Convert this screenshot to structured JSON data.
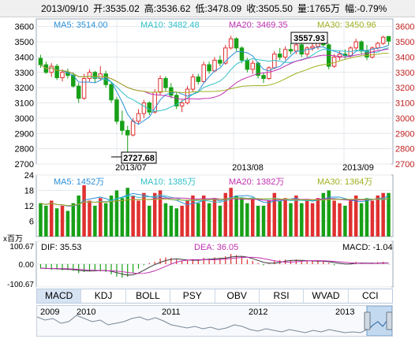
{
  "header": {
    "date": "2013/09/10",
    "open": "开:3535.02",
    "high": "高:3536.62",
    "low": "低:3478.09",
    "close": "收:3505.50",
    "volume": "量:1765万",
    "change": "幅:-0.79%"
  },
  "colors": {
    "up": "#e03030",
    "down": "#18a018",
    "ma5": "#2a8fd8",
    "ma10": "#30c0c8",
    "ma20": "#c030b0",
    "ma30": "#a0b020"
  },
  "price_panel": {
    "legend": {
      "ma5": "MA5: 3514.00",
      "ma10": "MA10: 3482.48",
      "ma20": "MA20: 3469.35",
      "ma30": "MA30: 3450.96"
    },
    "y_ticks": [
      "3600",
      "3500",
      "3400",
      "3300",
      "3200",
      "3100",
      "3000",
      "2900",
      "2800",
      "2700"
    ],
    "x_labels": [
      "2013/07",
      "2013/08",
      "2013/09"
    ],
    "max_label": "3557.93",
    "min_label": "2727.68"
  },
  "volume_panel": {
    "legend": {
      "ma5": "MA5: 1452万",
      "ma10": "MA10: 1385万",
      "ma20": "MA20: 1382万",
      "ma30": "MA30: 1364万"
    },
    "y_ticks": [
      "24",
      "18",
      "12",
      "6"
    ],
    "unit": "x百万"
  },
  "macd_panel": {
    "legend": {
      "dif": "DIF: 35.53",
      "dea": "DEA: 36.05",
      "macd": "MACD: -1.04"
    },
    "y_ticks": [
      "100.67",
      "0.00",
      "-100.67"
    ]
  },
  "tabs": [
    {
      "label": "MACD",
      "active": true
    },
    {
      "label": "KDJ",
      "active": false
    },
    {
      "label": "BOLL",
      "active": false
    },
    {
      "label": "PSY",
      "active": false
    },
    {
      "label": "OBV",
      "active": false
    },
    {
      "label": "RSI",
      "active": false
    },
    {
      "label": "WVAD",
      "active": false
    },
    {
      "label": "CCI",
      "active": false
    }
  ],
  "overview": {
    "years": [
      "2009",
      "2010",
      "2011",
      "2012",
      "2013"
    ]
  },
  "chart_data": {
    "type": "candlestick",
    "x_range": [
      "2013/06/17",
      "2013/09/10"
    ],
    "ylim": [
      2700,
      3650
    ],
    "volume_ylim": [
      0,
      24
    ],
    "macd_ylim": [
      -100.67,
      100.67
    ],
    "candles": [
      {
        "o": 3392,
        "h": 3415,
        "l": 3330,
        "c": 3350
      },
      {
        "o": 3350,
        "h": 3370,
        "l": 3290,
        "c": 3300
      },
      {
        "o": 3300,
        "h": 3360,
        "l": 3270,
        "c": 3340
      },
      {
        "o": 3340,
        "h": 3355,
        "l": 3250,
        "c": 3265
      },
      {
        "o": 3265,
        "h": 3320,
        "l": 3240,
        "c": 3300
      },
      {
        "o": 3300,
        "h": 3325,
        "l": 3260,
        "c": 3280
      },
      {
        "o": 3280,
        "h": 3300,
        "l": 3200,
        "c": 3210
      },
      {
        "o": 3210,
        "h": 3230,
        "l": 3100,
        "c": 3130
      },
      {
        "o": 3130,
        "h": 3290,
        "l": 3120,
        "c": 3260
      },
      {
        "o": 3260,
        "h": 3320,
        "l": 3240,
        "c": 3300
      },
      {
        "o": 3300,
        "h": 3310,
        "l": 3230,
        "c": 3260
      },
      {
        "o": 3260,
        "h": 3340,
        "l": 3250,
        "c": 3290
      },
      {
        "o": 3290,
        "h": 3310,
        "l": 3200,
        "c": 3220
      },
      {
        "o": 3220,
        "h": 3240,
        "l": 3100,
        "c": 3120
      },
      {
        "o": 3120,
        "h": 3140,
        "l": 2960,
        "c": 2980
      },
      {
        "o": 2980,
        "h": 3050,
        "l": 2890,
        "c": 2920
      },
      {
        "o": 2920,
        "h": 2950,
        "l": 2728,
        "c": 2890
      },
      {
        "o": 2890,
        "h": 3000,
        "l": 2880,
        "c": 2980
      },
      {
        "o": 2980,
        "h": 3060,
        "l": 2960,
        "c": 3030
      },
      {
        "o": 3030,
        "h": 3120,
        "l": 3000,
        "c": 3100
      },
      {
        "o": 3100,
        "h": 3110,
        "l": 3020,
        "c": 3040
      },
      {
        "o": 3040,
        "h": 3190,
        "l": 3030,
        "c": 3170
      },
      {
        "o": 3170,
        "h": 3280,
        "l": 3150,
        "c": 3260
      },
      {
        "o": 3260,
        "h": 3275,
        "l": 3180,
        "c": 3200
      },
      {
        "o": 3200,
        "h": 3230,
        "l": 3130,
        "c": 3150
      },
      {
        "o": 3150,
        "h": 3170,
        "l": 3060,
        "c": 3080
      },
      {
        "o": 3080,
        "h": 3120,
        "l": 3040,
        "c": 3100
      },
      {
        "o": 3100,
        "h": 3210,
        "l": 3090,
        "c": 3190
      },
      {
        "o": 3190,
        "h": 3290,
        "l": 3170,
        "c": 3270
      },
      {
        "o": 3270,
        "h": 3290,
        "l": 3220,
        "c": 3240
      },
      {
        "o": 3240,
        "h": 3370,
        "l": 3230,
        "c": 3350
      },
      {
        "o": 3350,
        "h": 3370,
        "l": 3290,
        "c": 3310
      },
      {
        "o": 3310,
        "h": 3400,
        "l": 3300,
        "c": 3380
      },
      {
        "o": 3380,
        "h": 3410,
        "l": 3340,
        "c": 3360
      },
      {
        "o": 3360,
        "h": 3480,
        "l": 3350,
        "c": 3460
      },
      {
        "o": 3460,
        "h": 3540,
        "l": 3450,
        "c": 3520
      },
      {
        "o": 3520,
        "h": 3530,
        "l": 3440,
        "c": 3460
      },
      {
        "o": 3460,
        "h": 3470,
        "l": 3360,
        "c": 3380
      },
      {
        "o": 3380,
        "h": 3395,
        "l": 3300,
        "c": 3320
      },
      {
        "o": 3320,
        "h": 3380,
        "l": 3290,
        "c": 3360
      },
      {
        "o": 3360,
        "h": 3370,
        "l": 3260,
        "c": 3280
      },
      {
        "o": 3280,
        "h": 3300,
        "l": 3230,
        "c": 3260
      },
      {
        "o": 3260,
        "h": 3340,
        "l": 3250,
        "c": 3330
      },
      {
        "o": 3330,
        "h": 3440,
        "l": 3320,
        "c": 3420
      },
      {
        "o": 3420,
        "h": 3460,
        "l": 3380,
        "c": 3400
      },
      {
        "o": 3400,
        "h": 3470,
        "l": 3380,
        "c": 3450
      },
      {
        "o": 3450,
        "h": 3490,
        "l": 3420,
        "c": 3440
      },
      {
        "o": 3440,
        "h": 3500,
        "l": 3420,
        "c": 3480
      },
      {
        "o": 3480,
        "h": 3490,
        "l": 3400,
        "c": 3420
      },
      {
        "o": 3420,
        "h": 3470,
        "l": 3400,
        "c": 3460
      },
      {
        "o": 3460,
        "h": 3500,
        "l": 3440,
        "c": 3470
      },
      {
        "o": 3470,
        "h": 3520,
        "l": 3450,
        "c": 3500
      },
      {
        "o": 3500,
        "h": 3558,
        "l": 3470,
        "c": 3480
      },
      {
        "o": 3480,
        "h": 3490,
        "l": 3320,
        "c": 3340
      },
      {
        "o": 3340,
        "h": 3420,
        "l": 3330,
        "c": 3400
      },
      {
        "o": 3400,
        "h": 3440,
        "l": 3380,
        "c": 3420
      },
      {
        "o": 3420,
        "h": 3450,
        "l": 3390,
        "c": 3410
      },
      {
        "o": 3410,
        "h": 3470,
        "l": 3400,
        "c": 3460
      },
      {
        "o": 3460,
        "h": 3520,
        "l": 3440,
        "c": 3500
      },
      {
        "o": 3500,
        "h": 3510,
        "l": 3420,
        "c": 3440
      },
      {
        "o": 3440,
        "h": 3480,
        "l": 3380,
        "c": 3400
      },
      {
        "o": 3400,
        "h": 3470,
        "l": 3390,
        "c": 3460
      },
      {
        "o": 3460,
        "h": 3500,
        "l": 3450,
        "c": 3490
      },
      {
        "o": 3490,
        "h": 3540,
        "l": 3480,
        "c": 3530
      },
      {
        "o": 3535,
        "h": 3537,
        "l": 3478,
        "c": 3505
      }
    ],
    "volume": [
      13,
      12,
      14,
      11,
      12,
      10,
      13,
      16,
      20,
      14,
      12,
      15,
      13,
      16,
      18,
      15,
      19,
      16,
      14,
      17,
      12,
      17,
      18,
      13,
      12,
      11,
      12,
      14,
      16,
      13,
      16,
      13,
      15,
      12,
      17,
      19,
      16,
      15,
      13,
      15,
      12,
      12,
      14,
      17,
      14,
      15,
      13,
      16,
      13,
      14,
      13,
      15,
      17,
      18,
      14,
      13,
      12,
      14,
      16,
      13,
      15,
      14,
      16,
      17,
      17
    ],
    "macd_hist": [
      -20,
      -22,
      -25,
      -24,
      -28,
      -26,
      -30,
      -40,
      -35,
      -30,
      -28,
      -32,
      -35,
      -45,
      -55,
      -60,
      -55,
      -40,
      -20,
      -5,
      5,
      10,
      25,
      30,
      28,
      20,
      15,
      18,
      22,
      20,
      28,
      25,
      30,
      28,
      35,
      45,
      40,
      32,
      20,
      15,
      5,
      -5,
      5,
      15,
      18,
      20,
      18,
      20,
      15,
      15,
      12,
      15,
      15,
      5,
      -5,
      0,
      2,
      5,
      10,
      5,
      0,
      5,
      8,
      10,
      -1
    ]
  }
}
